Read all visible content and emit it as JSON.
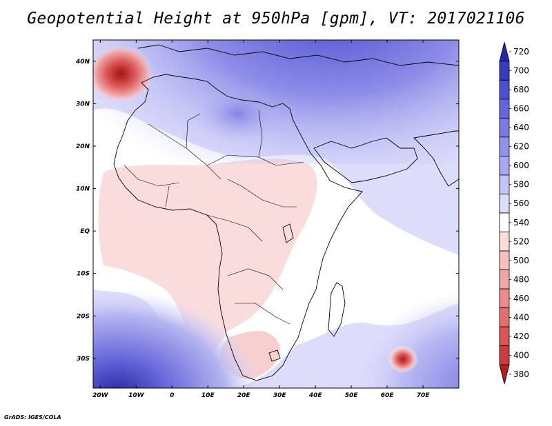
{
  "title": "Geopotential Height at 950hPa [gpm], VT: 2017021106",
  "credit": "GrADS: IGES/COLA",
  "map": {
    "lon_range": [
      -22,
      80
    ],
    "lat_range": [
      -37,
      45
    ],
    "lat_labels": [
      {
        "text": "40N",
        "lat": 40
      },
      {
        "text": "30N",
        "lat": 30
      },
      {
        "text": "20N",
        "lat": 20
      },
      {
        "text": "10N",
        "lat": 10
      },
      {
        "text": "EQ",
        "lat": 0
      },
      {
        "text": "10S",
        "lat": -10
      },
      {
        "text": "20S",
        "lat": -20
      },
      {
        "text": "30S",
        "lat": -30
      }
    ],
    "lon_labels": [
      {
        "text": "20W",
        "lon": -20
      },
      {
        "text": "10W",
        "lon": -10
      },
      {
        "text": "0",
        "lon": 0
      },
      {
        "text": "10E",
        "lon": 10
      },
      {
        "text": "20E",
        "lon": 20
      },
      {
        "text": "30E",
        "lon": 30
      },
      {
        "text": "40E",
        "lon": 40
      },
      {
        "text": "50E",
        "lon": 50
      },
      {
        "text": "60E",
        "lon": 60
      },
      {
        "text": "70E",
        "lon": 70
      }
    ],
    "features": [
      {
        "name": "low-center-atlantic",
        "lon": -14.5,
        "lat": 36,
        "value": 380
      },
      {
        "name": "low-center-indian-ocean",
        "lon": 64.5,
        "lat": -30,
        "value": 400
      }
    ]
  },
  "colorbar": {
    "levels": [
      "720",
      "700",
      "680",
      "660",
      "640",
      "620",
      "600",
      "580",
      "560",
      "540",
      "520",
      "500",
      "480",
      "460",
      "440",
      "420",
      "400",
      "380"
    ],
    "colors": [
      "#2626a6",
      "#3a3abf",
      "#4e4ed2",
      "#6464dd",
      "#7a7ae4",
      "#9292eb",
      "#a8a8f0",
      "#c4c4f6",
      "#dcdcfb",
      "#ffffff",
      "#fbdcdc",
      "#f6c0c0",
      "#f0a6a6",
      "#ea8c8c",
      "#e27070",
      "#d85656",
      "#cc3c3c",
      "#b02020"
    ]
  }
}
